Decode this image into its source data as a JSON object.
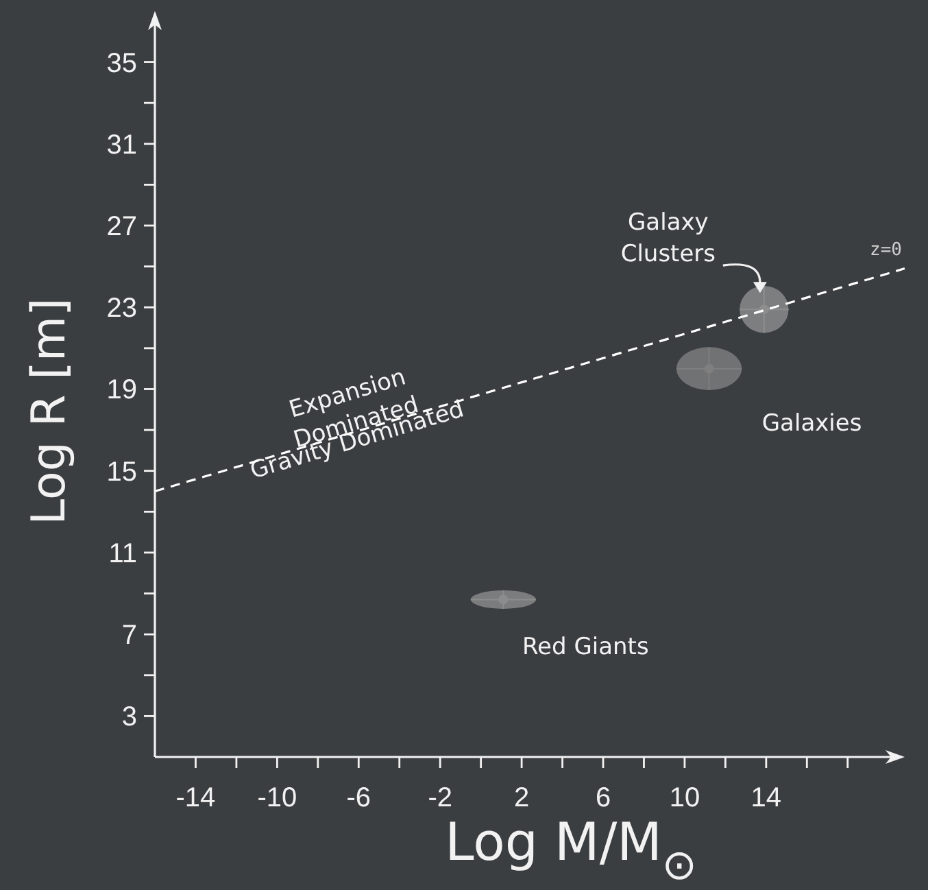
{
  "chart_data": {
    "type": "scatter",
    "xlabel": "Log M/M$_{⊙}$",
    "ylabel": "Log R [m]",
    "xlim": [
      -16,
      20.8
    ],
    "ylim": [
      1,
      37.5
    ],
    "xticks": [
      -14,
      {
        "value": -12,
        "label": null
      },
      -10,
      {
        "value": -8,
        "label": null
      },
      -6,
      {
        "value": -4,
        "label": null
      },
      -2,
      {
        "value": 0,
        "label": null
      },
      2,
      {
        "value": 4,
        "label": null
      },
      6,
      {
        "value": 8,
        "label": null
      },
      10,
      {
        "value": 12,
        "label": null
      },
      14,
      {
        "value": 16,
        "label": null
      },
      {
        "value": 18,
        "label": null
      }
    ],
    "yticks": [
      3,
      {
        "value": 5,
        "label": null
      },
      7,
      {
        "value": 9,
        "label": null
      },
      11,
      {
        "value": 13,
        "label": null
      },
      15,
      {
        "value": 17,
        "label": null
      },
      19,
      {
        "value": 21,
        "label": null
      },
      23,
      {
        "value": 25,
        "label": null
      },
      27,
      {
        "value": 29,
        "label": null
      },
      31,
      {
        "value": 33,
        "label": null
      },
      35
    ],
    "grid": false,
    "legend": false,
    "series": [
      {
        "color": "#8c8c8c",
        "x": [
          1.1
        ],
        "values": [
          8.7
        ],
        "xerrors": [
          1.6
        ],
        "errors": [
          0.45
        ]
      },
      {
        "color": "#7f7f7f",
        "x": [
          11.2
        ],
        "values": [
          20.0
        ],
        "xerrors": [
          1.6
        ],
        "errors": [
          1.05
        ]
      },
      {
        "color": "#8e8e8e",
        "x": [
          13.9
        ],
        "values": [
          22.9
        ],
        "xerrors": [
          1.2
        ],
        "errors": [
          1.15
        ]
      },
      {
        "name": "z=0",
        "type": "line",
        "color": "#ffffff",
        "line_style": "dashed",
        "marker": "none",
        "x": [
          -16,
          20.8
        ],
        "values": [
          14.0,
          24.9
        ]
      }
    ],
    "annotations": [
      "Expansion Dominated",
      "Gravity Dominated",
      {
        "text": "Red Giants",
        "x": 1.1,
        "y": 8.7
      },
      {
        "text": "Galaxies",
        "x": 11.2,
        "y": 20.0
      },
      {
        "text": "Galaxy Clusters",
        "x": 13.9,
        "y": 22.9
      }
    ]
  }
}
